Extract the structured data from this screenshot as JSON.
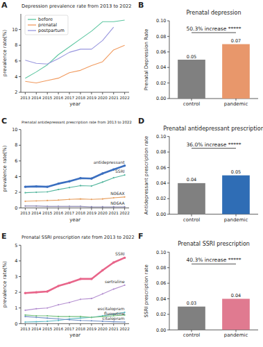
{
  "chart_data": [
    {
      "type": "line",
      "panel_label": "A",
      "title": "Depression prevalence rate from 2013 to 2022",
      "x_label": "year",
      "y_label": "prevalence rate(%)",
      "x": [
        2013,
        2014,
        2015,
        2016,
        2017,
        2018,
        2019,
        2020,
        2021,
        2022
      ],
      "xlim": [
        2012.6,
        2022.4
      ],
      "xticks": [
        2013,
        2014,
        2015,
        2016,
        2017,
        2018,
        2019,
        2020,
        2021,
        2022
      ],
      "ylim": [
        2,
        12
      ],
      "yticks": [
        2,
        4,
        6,
        8,
        10
      ],
      "grid": false,
      "legend": "upper-left",
      "series": [
        {
          "name": "before",
          "color": "#5cc6a0",
          "values": [
            3.8,
            4.6,
            5.5,
            6.8,
            7.8,
            8.8,
            9.8,
            11.0,
            11.0,
            11.2
          ]
        },
        {
          "name": "prenatal",
          "color": "#f19a5e",
          "values": [
            3.4,
            3.2,
            3.5,
            3.8,
            4.5,
            4.8,
            5.4,
            5.9,
            7.4,
            8.0
          ]
        },
        {
          "name": "postpartum",
          "color": "#9896de",
          "values": [
            6.1,
            5.7,
            5.6,
            6.3,
            7.1,
            7.5,
            7.5,
            8.6,
            10.3,
            null
          ]
        }
      ]
    },
    {
      "type": "bar",
      "panel_label": "B",
      "title": "Prenatal depression",
      "y_label": "Prenatal Depression Rate",
      "annotation": "50.3% increase *****",
      "categories": [
        "control",
        "pandemic"
      ],
      "values": [
        0.05,
        0.07
      ],
      "colors": [
        "#808080",
        "#e8976b"
      ],
      "ylim": [
        0,
        0.1
      ],
      "yticks": [
        {
          "value": 0,
          "label": "0.00"
        },
        {
          "value": 0.02,
          "label": "0.02"
        },
        {
          "value": 0.04,
          "label": "0.04"
        },
        {
          "value": 0.06,
          "label": "0.06"
        },
        {
          "value": 0.08,
          "label": "0.08"
        },
        {
          "value": 0.1,
          "label": "0.10"
        }
      ],
      "grid": false,
      "data_labels": true
    },
    {
      "type": "line",
      "panel_label": "C",
      "title": "Prenatal antidepressant prescription rate from 2013 to 2022",
      "x_label": "year",
      "y_label": "prevalence rate(%)",
      "x": [
        2013,
        2014,
        2015,
        2016,
        2017,
        2018,
        2019,
        2020,
        2021,
        2022
      ],
      "xlim": [
        2012.6,
        2022.4
      ],
      "xticks": [
        2013,
        2014,
        2015,
        2016,
        2017,
        2018,
        2019,
        2020,
        2021,
        2022
      ],
      "ylim": [
        0,
        10
      ],
      "yticks": [
        0,
        2,
        4,
        6,
        8,
        10
      ],
      "grid": false,
      "legend": "end",
      "series": [
        {
          "name": "antidepressant",
          "color": "#3b6fc0",
          "marker": "o",
          "values": [
            2.7,
            2.75,
            2.7,
            3.1,
            3.4,
            3.8,
            3.75,
            4.4,
            4.9,
            5.4
          ]
        },
        {
          "name": "SSRI",
          "color": "#52b59d",
          "marker": "o",
          "values": [
            1.95,
            2.0,
            2.05,
            2.35,
            2.6,
            2.85,
            2.8,
            3.3,
            3.85,
            4.2
          ]
        },
        {
          "name": "N06AX",
          "color": "#e8a060",
          "marker": "o",
          "values": [
            0.85,
            0.9,
            0.95,
            1.0,
            1.1,
            1.15,
            1.1,
            1.15,
            1.3,
            1.4
          ]
        },
        {
          "name": "N06AA",
          "color": "#8a86b0",
          "marker": "o",
          "values": [
            0.25,
            0.25,
            0.2,
            0.2,
            0.2,
            0.2,
            0.15,
            0.15,
            0.15,
            0.15
          ]
        }
      ]
    },
    {
      "type": "bar",
      "panel_label": "D",
      "title": "Prenatal antidepressant prescription",
      "y_label": "Antidepressant prescription rate",
      "annotation": "36.0% increase *****",
      "categories": [
        "control",
        "pandemic"
      ],
      "values": [
        0.04,
        0.05
      ],
      "colors": [
        "#808080",
        "#2f6db5"
      ],
      "ylim": [
        0,
        0.1
      ],
      "yticks": [
        {
          "value": 0,
          "label": "0.00"
        },
        {
          "value": 0.02,
          "label": "0.02"
        },
        {
          "value": 0.04,
          "label": "0.04"
        },
        {
          "value": 0.06,
          "label": "0.06"
        },
        {
          "value": 0.08,
          "label": "0.08"
        },
        {
          "value": 0.1,
          "label": "0.10"
        }
      ],
      "grid": false,
      "data_labels": true
    },
    {
      "type": "line",
      "panel_label": "E",
      "title": "Prenatal SSRI prescription rate from 2013 to 2022",
      "x_label": "year",
      "y_label": "prevalence rate(%)",
      "x": [
        2013,
        2014,
        2015,
        2016,
        2017,
        2018,
        2019,
        2020,
        2021,
        2022
      ],
      "xlim": [
        2012.6,
        2022.4
      ],
      "xticks": [
        2013,
        2014,
        2015,
        2016,
        2017,
        2018,
        2019,
        2020,
        2021,
        2022
      ],
      "ylim": [
        0,
        5
      ],
      "yticks": [
        0,
        1,
        2,
        3,
        4,
        5
      ],
      "grid": false,
      "legend": "end",
      "series": [
        {
          "name": "SSRI",
          "color": "#e8658a",
          "marker": "o",
          "values": [
            1.95,
            2.0,
            2.05,
            2.4,
            2.6,
            2.85,
            2.85,
            3.4,
            3.9,
            4.2
          ]
        },
        {
          "name": "sertraline",
          "color": "#b48fd0",
          "marker": "o",
          "values": [
            0.85,
            0.95,
            1.0,
            1.2,
            1.35,
            1.55,
            1.6,
            1.9,
            2.2,
            2.45
          ]
        },
        {
          "name": "escitalopram",
          "color": "#5ab8c4",
          "marker": "o",
          "values": [
            0.1,
            0.12,
            0.15,
            0.2,
            0.3,
            0.35,
            0.4,
            0.5,
            0.6,
            0.72
          ]
        },
        {
          "name": "fluoxetine",
          "color": "#74c07e",
          "marker": "o",
          "values": [
            0.55,
            0.5,
            0.5,
            0.45,
            0.45,
            0.45,
            0.4,
            0.45,
            0.5,
            0.55
          ]
        },
        {
          "name": "citalopram",
          "color": "#6f8fc4",
          "marker": "o",
          "values": [
            0.45,
            0.4,
            0.35,
            0.3,
            0.25,
            0.2,
            0.18,
            0.15,
            0.12,
            0.1
          ]
        }
      ]
    },
    {
      "type": "bar",
      "panel_label": "F",
      "title": "Prenatal SSRI prescription",
      "y_label": "SSRI prescription rate",
      "annotation": "40.3% increase *****",
      "categories": [
        "control",
        "pandemic"
      ],
      "values": [
        0.03,
        0.04
      ],
      "colors": [
        "#808080",
        "#e07a90"
      ],
      "ylim": [
        0,
        0.1
      ],
      "yticks": [
        {
          "value": 0,
          "label": "0.00"
        },
        {
          "value": 0.02,
          "label": "0.02"
        },
        {
          "value": 0.04,
          "label": "0.04"
        },
        {
          "value": 0.06,
          "label": "0.06"
        },
        {
          "value": 0.08,
          "label": "0.08"
        },
        {
          "value": 0.1,
          "label": "0.10"
        }
      ],
      "grid": false,
      "data_labels": true
    }
  ]
}
